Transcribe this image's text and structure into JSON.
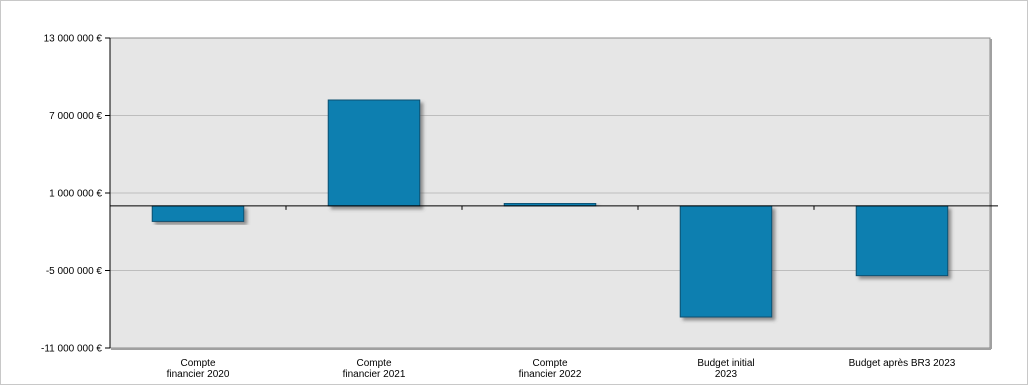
{
  "chart_data": {
    "type": "bar",
    "title": "",
    "xlabel": "",
    "ylabel": "",
    "categories": [
      [
        "Compte",
        "financier 2020"
      ],
      [
        "Compte",
        "financier 2021"
      ],
      [
        "Compte",
        "financier 2022"
      ],
      [
        "Budget initial",
        "2023"
      ],
      [
        "Budget après BR3 2023"
      ]
    ],
    "values": [
      -1200000,
      8200000,
      200000,
      -8600000,
      -5400000
    ],
    "ylim": [
      -11000000,
      13000000
    ],
    "yticks": [
      13000000,
      7000000,
      1000000,
      -5000000,
      -11000000
    ],
    "ytick_labels": [
      "13 000 000 €",
      "7 000 000 €",
      "1 000 000 €",
      "-5 000 000 €",
      "-11 000 000 €"
    ],
    "grid": true,
    "legend": "none",
    "colors": {
      "bar": "#0a7fb0",
      "bar_edge": "#0a4f70",
      "plot_bg": "#e6e6e6",
      "gridline": "#ffffff",
      "axis": "#000000",
      "outer_border": "#b0b0b0"
    }
  }
}
